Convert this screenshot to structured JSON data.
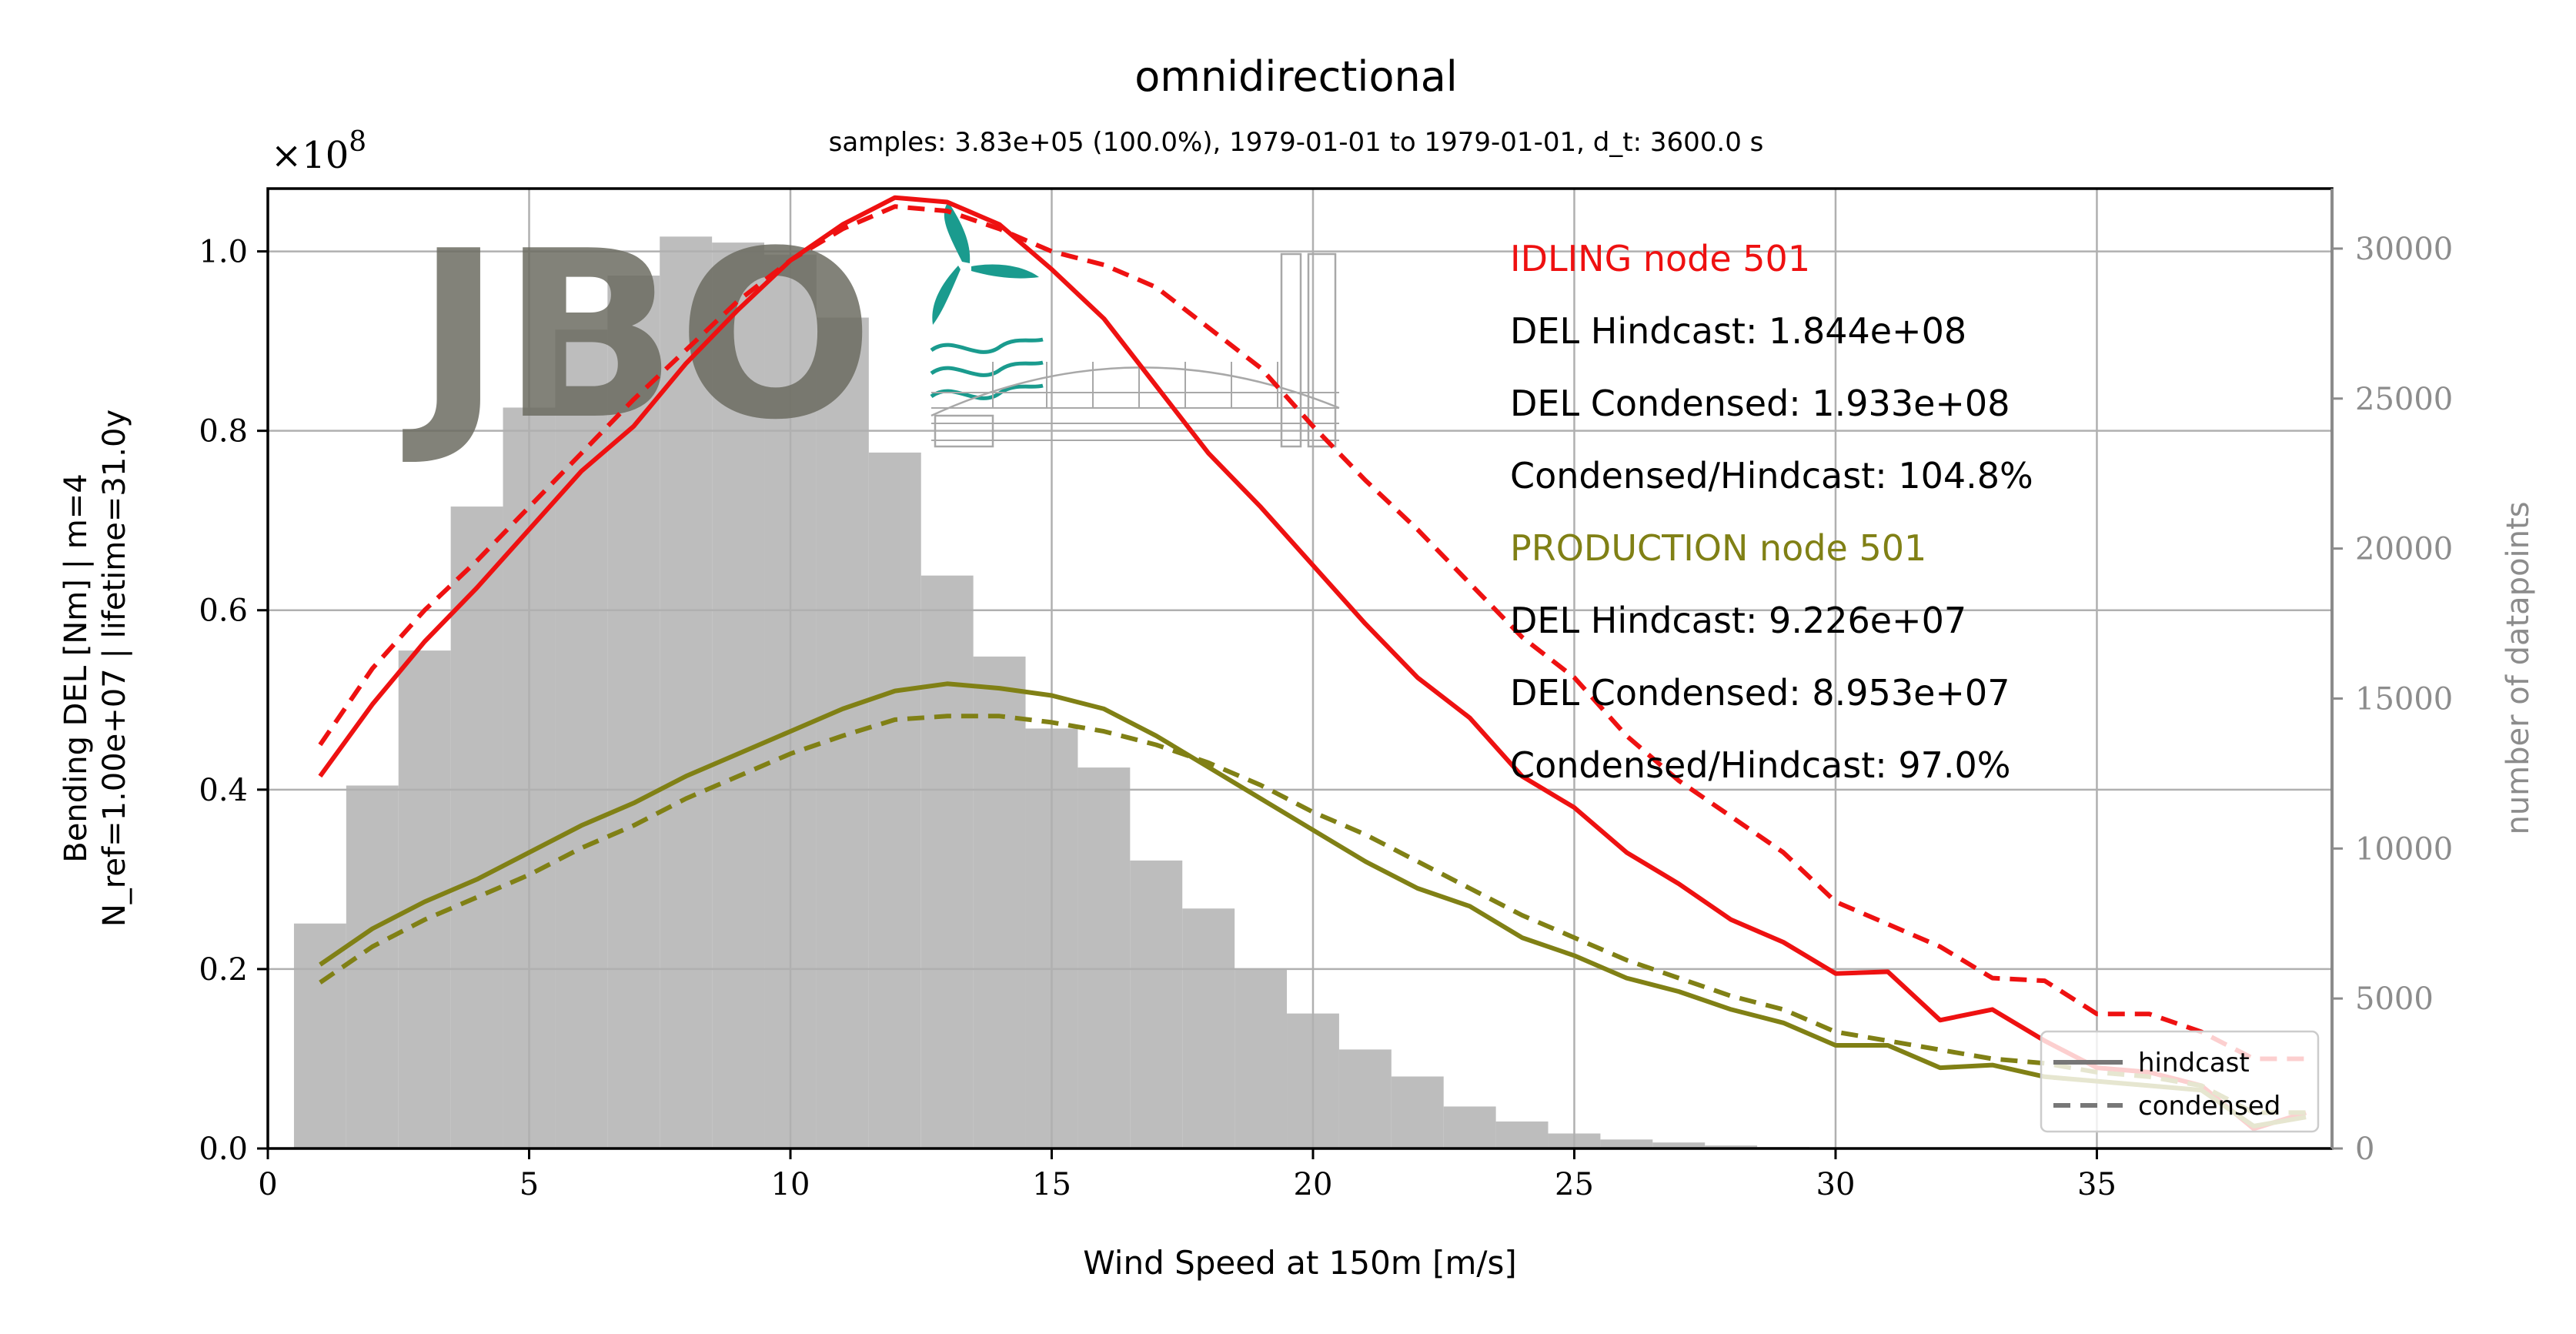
{
  "chart_data": {
    "type": "line",
    "title": "omnidirectional",
    "subtitle": "samples: 3.83e+05 (100.0%), 1979-01-01 to 1979-01-01, d_t: 3600.0 s",
    "xlabel": "Wind Speed at 150m [m/s]",
    "ylabel_line1": "Bending DEL [Nm] | m=4",
    "ylabel_line2": "N_ref=1.00e+07 | lifetime=31.0y",
    "y2label": "number of datapoints",
    "y_multiplier": "×10",
    "y_multiplier_exp": "8",
    "xlim": [
      0,
      39.5
    ],
    "ylim": [
      0,
      1.07
    ],
    "y2lim": [
      0,
      32000
    ],
    "xticks": [
      0,
      5,
      10,
      15,
      20,
      25,
      30,
      35
    ],
    "yticks": [
      0.0,
      0.2,
      0.4,
      0.6,
      0.8,
      1.0
    ],
    "y2ticks": [
      0,
      5000,
      10000,
      15000,
      20000,
      25000,
      30000
    ],
    "grid": true,
    "histogram": {
      "bin_width": 1,
      "x": [
        1,
        2,
        3,
        4,
        5,
        6,
        7,
        8,
        9,
        10,
        11,
        12,
        13,
        14,
        15,
        16,
        17,
        18,
        19,
        20,
        21,
        22,
        23,
        24,
        25,
        26,
        27,
        28,
        29,
        30
      ],
      "counts": [
        7500,
        12100,
        16600,
        21400,
        24700,
        27300,
        29100,
        30400,
        30200,
        29800,
        27700,
        23200,
        19100,
        16400,
        14000,
        12700,
        9600,
        8000,
        6000,
        4500,
        3300,
        2400,
        1400,
        900,
        500,
        300,
        200,
        100,
        50,
        20
      ]
    },
    "x": [
      1,
      2,
      3,
      4,
      5,
      6,
      7,
      8,
      9,
      10,
      11,
      12,
      13,
      14,
      15,
      16,
      17,
      18,
      19,
      20,
      21,
      22,
      23,
      24,
      25,
      26,
      27,
      28,
      29,
      30,
      31,
      32,
      33,
      34,
      35,
      36,
      37,
      38,
      39
    ],
    "series": [
      {
        "group": "idling",
        "style": "solid",
        "color": "#ee1111",
        "values": [
          0.415,
          0.495,
          0.565,
          0.625,
          0.69,
          0.755,
          0.805,
          0.875,
          0.935,
          0.99,
          1.03,
          1.06,
          1.055,
          1.03,
          0.98,
          0.925,
          0.85,
          0.775,
          0.715,
          0.65,
          0.585,
          0.525,
          0.48,
          0.415,
          0.38,
          0.33,
          0.295,
          0.255,
          0.23,
          0.195,
          0.197,
          0.143,
          0.155,
          0.12,
          0.09,
          0.085,
          0.07,
          0.022,
          0.04
        ]
      },
      {
        "group": "idling",
        "style": "dashed",
        "color": "#ee1111",
        "values": [
          0.45,
          0.535,
          0.6,
          0.655,
          0.715,
          0.775,
          0.835,
          0.89,
          0.945,
          0.99,
          1.025,
          1.05,
          1.045,
          1.025,
          1.0,
          0.985,
          0.96,
          0.915,
          0.87,
          0.805,
          0.745,
          0.69,
          0.63,
          0.57,
          0.525,
          0.46,
          0.41,
          0.37,
          0.33,
          0.275,
          0.25,
          0.225,
          0.19,
          0.187,
          0.15,
          0.15,
          0.13,
          0.1,
          0.1
        ]
      },
      {
        "group": "production",
        "style": "solid",
        "color": "#808015",
        "values": [
          0.205,
          0.245,
          0.275,
          0.3,
          0.33,
          0.36,
          0.385,
          0.415,
          0.44,
          0.465,
          0.49,
          0.51,
          0.518,
          0.513,
          0.505,
          0.49,
          0.46,
          0.425,
          0.39,
          0.355,
          0.32,
          0.29,
          0.27,
          0.235,
          0.215,
          0.19,
          0.175,
          0.155,
          0.14,
          0.115,
          0.115,
          0.09,
          0.093,
          0.08,
          0.075,
          0.07,
          0.065,
          0.025,
          0.035
        ]
      },
      {
        "group": "production",
        "style": "dashed",
        "color": "#808015",
        "values": [
          0.185,
          0.225,
          0.255,
          0.28,
          0.305,
          0.335,
          0.36,
          0.39,
          0.415,
          0.44,
          0.46,
          0.478,
          0.482,
          0.482,
          0.475,
          0.465,
          0.45,
          0.43,
          0.405,
          0.375,
          0.35,
          0.32,
          0.29,
          0.26,
          0.235,
          0.21,
          0.19,
          0.17,
          0.155,
          0.13,
          0.12,
          0.11,
          0.1,
          0.095,
          0.085,
          0.08,
          0.07,
          0.04,
          0.04
        ]
      }
    ],
    "annotations": {
      "idling": {
        "title": "IDLING node 501",
        "lines": [
          "DEL Hindcast: 1.844e+08",
          "DEL Condensed: 1.933e+08",
          "Condensed/Hindcast: 104.8%"
        ]
      },
      "production": {
        "title": "PRODUCTION node 501",
        "lines": [
          "DEL Hindcast: 9.226e+07",
          "DEL Condensed: 8.953e+07",
          "Condensed/Hindcast: 97.0%"
        ]
      }
    },
    "legend": {
      "placement": "lower-right",
      "entries": [
        {
          "label": "hindcast",
          "style": "solid"
        },
        {
          "label": "condensed",
          "style": "dashed"
        }
      ]
    },
    "watermark": {
      "text": "JBO"
    },
    "colors": {
      "idling": "#ee1111",
      "production": "#808015",
      "histogram": "#bdbdbd",
      "grid": "#b0b0b0",
      "secondary_axis": "#8c8c8c"
    }
  }
}
